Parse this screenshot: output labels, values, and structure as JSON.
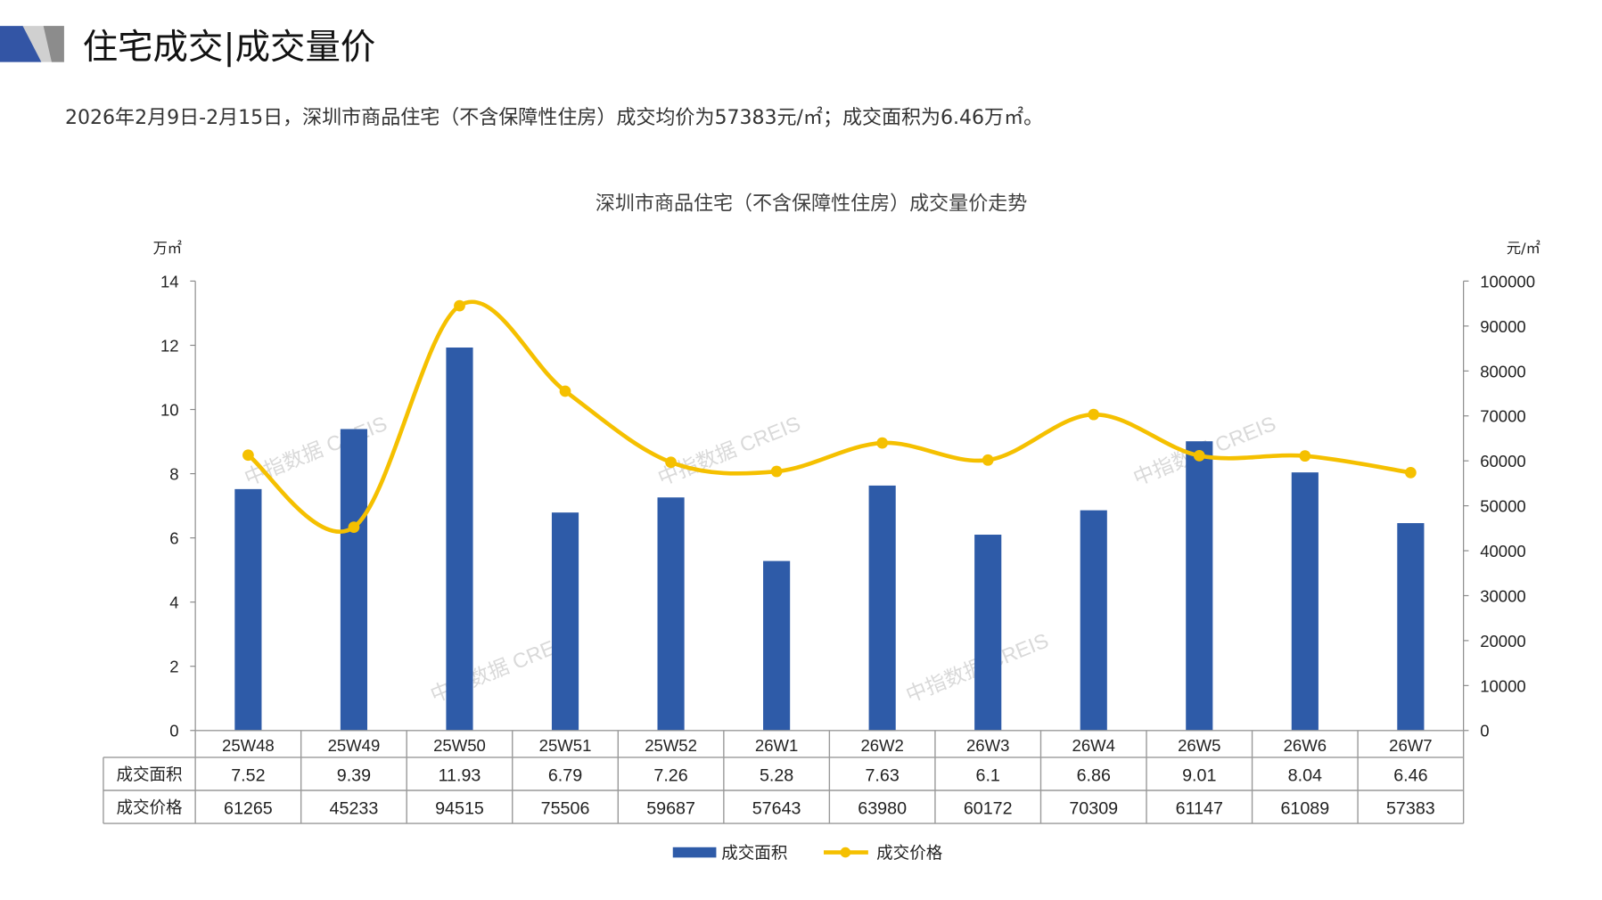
{
  "header": {
    "title": "住宅成交|成交量价",
    "summary": "2026年2月9日-2月15日，深圳市商品住宅（不含保障性住房）成交均价为57383元/㎡；成交面积为6.46万㎡。"
  },
  "watermark": "中指数据 CREIS",
  "colors": {
    "bar": "#2E5BA8",
    "line": "#F5C000",
    "logo_blue": "#3355A5",
    "logo_grey": "#A6A6A6"
  },
  "chart_data": {
    "type": "bar+line",
    "title": "深圳市商品住宅（不含保障性住房）成交量价走势",
    "left_unit": "万㎡",
    "right_unit": "元/㎡",
    "left_ylim": [
      0,
      14
    ],
    "left_ticks": [
      "0",
      "2",
      "4",
      "6",
      "8",
      "10",
      "12",
      "14"
    ],
    "right_ylim": [
      0,
      100000
    ],
    "right_ticks": [
      "0",
      "10000",
      "20000",
      "30000",
      "40000",
      "50000",
      "60000",
      "70000",
      "80000",
      "90000",
      "100000"
    ],
    "categories": [
      "25W48",
      "25W49",
      "25W50",
      "25W51",
      "25W52",
      "26W1",
      "26W2",
      "26W3",
      "26W4",
      "26W5",
      "26W6",
      "26W7"
    ],
    "series": [
      {
        "name": "成交面积",
        "type": "bar",
        "axis": "left",
        "values": [
          7.52,
          9.39,
          11.93,
          6.79,
          7.26,
          5.28,
          7.63,
          6.1,
          6.86,
          9.01,
          8.04,
          6.46
        ],
        "labels": [
          "7.52",
          "9.39",
          "11.93",
          "6.79",
          "7.26",
          "5.28",
          "7.63",
          "6.1",
          "6.86",
          "9.01",
          "8.04",
          "6.46"
        ]
      },
      {
        "name": "成交价格",
        "type": "line",
        "axis": "right",
        "values": [
          61265,
          45233,
          94515,
          75506,
          59687,
          57643,
          63980,
          60172,
          70309,
          61147,
          61089,
          57383
        ],
        "labels": [
          "61265",
          "45233",
          "94515",
          "75506",
          "59687",
          "57643",
          "63980",
          "60172",
          "70309",
          "61147",
          "61089",
          "57383"
        ]
      }
    ],
    "legend_position": "bottom",
    "grid": false
  }
}
